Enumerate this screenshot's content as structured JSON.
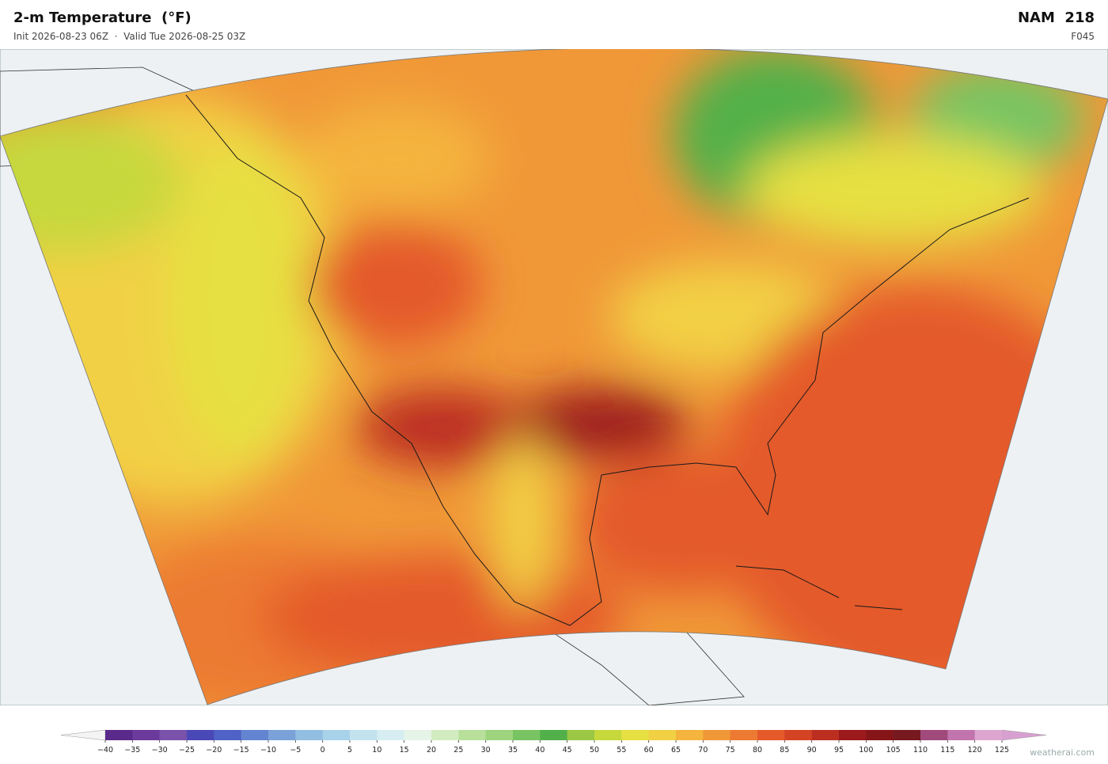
{
  "header": {
    "title": "2-m Temperature  (°F)",
    "subtitle": "Init 2026-08-23 06Z  ·  Valid Tue 2026-08-25 03Z",
    "model": "NAM  218",
    "forecast_hour": "F045"
  },
  "colorbar": {
    "ticks": [
      {
        "value": -40,
        "label": "−40"
      },
      {
        "value": -35,
        "label": "−35"
      },
      {
        "value": -30,
        "label": "−30"
      },
      {
        "value": -25,
        "label": "−25"
      },
      {
        "value": -20,
        "label": "−20"
      },
      {
        "value": -15,
        "label": "−15"
      },
      {
        "value": -10,
        "label": "−10"
      },
      {
        "value": -5,
        "label": "−5"
      },
      0,
      5,
      10,
      15,
      20,
      25,
      30,
      35,
      40,
      45,
      50,
      55,
      60,
      65,
      70,
      75,
      80,
      85,
      90,
      95,
      100,
      105,
      110,
      115,
      120,
      125
    ],
    "colors": [
      "#5a2a8a",
      "#6b3a9c",
      "#7a52aa",
      "#4a48b6",
      "#4f62c6",
      "#6384d0",
      "#7aa2d8",
      "#92bee2",
      "#a8d2ea",
      "#c2e2ee",
      "#d6eef2",
      "#e6f4e8",
      "#d2ecc0",
      "#b8e09a",
      "#9ed47e",
      "#78c462",
      "#52b04a",
      "#9ac845",
      "#c6d83c",
      "#e6e042",
      "#f2d044",
      "#f4b43e",
      "#f09838",
      "#ec7a32",
      "#e45a2a",
      "#d44424",
      "#bc2e20",
      "#9c1a1c",
      "#861518",
      "#761a20",
      "#a04a7c",
      "#c274ac",
      "#dca6d0"
    ],
    "extend_colors": [
      "#f4f4f4",
      "#d8a0d0"
    ]
  },
  "watermark": "weatherai.com"
}
